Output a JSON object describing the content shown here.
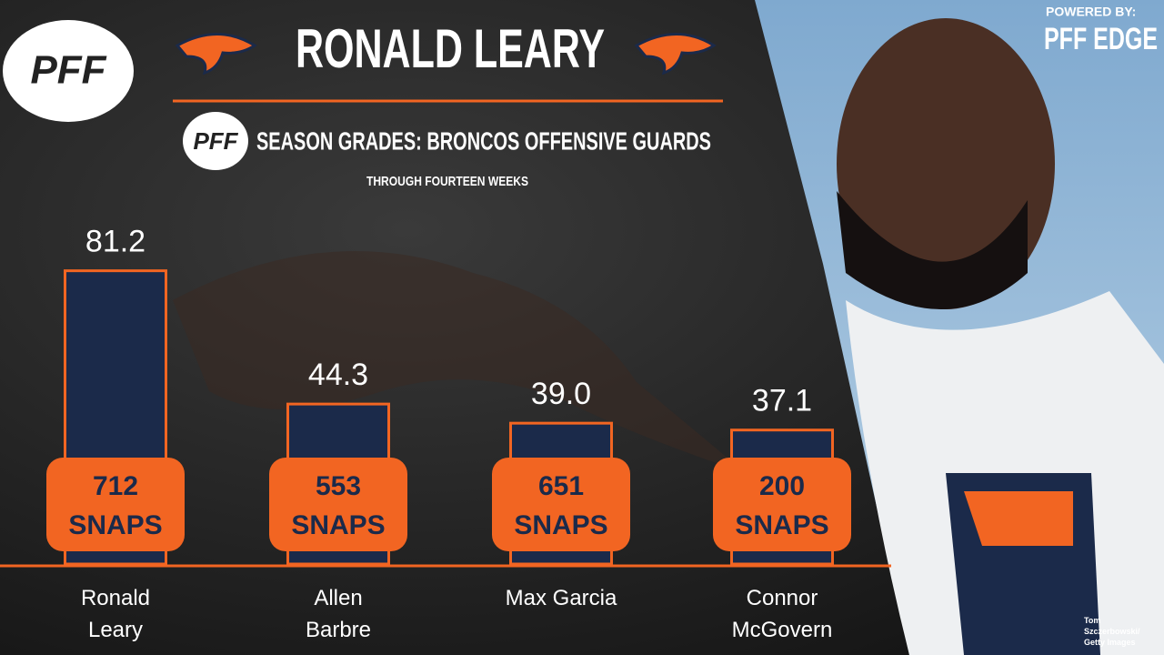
{
  "chart_data": {
    "type": "bar",
    "title": "RONALD LEARY",
    "subtitle": "SEASON GRADES: BRONCOS OFFENSIVE GUARDS",
    "note": "THROUGH FOURTEEN WEEKS",
    "logo_text": "PFF",
    "powered_by": "POWERED BY:",
    "brand": "PFF EDGE",
    "photo_credit": "Tom Szczerbowski/ Getty Images",
    "categories": [
      "Ronald Leary",
      "Allen Barbre",
      "Max Garcia",
      "Connor McGovern"
    ],
    "values": [
      81.2,
      44.3,
      39.0,
      37.1
    ],
    "value_labels": [
      "81.2",
      "44.3",
      "39.0",
      "37.1"
    ],
    "snaps": [
      712,
      553,
      651,
      200
    ],
    "snaps_unit": "SNAPS",
    "color": "#1b2a4a",
    "edge_color": "#f26522",
    "ylim": [
      0,
      100
    ]
  }
}
